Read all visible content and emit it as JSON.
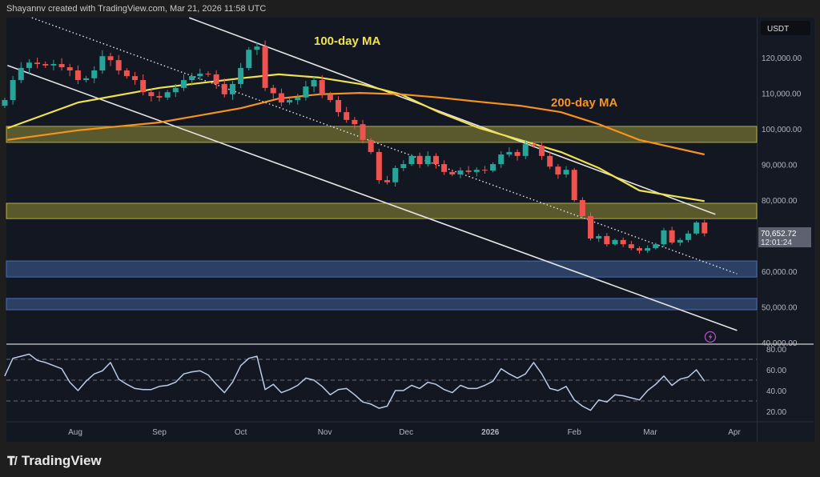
{
  "header": {
    "credit": "Shayannv created with TradingView.com, Mar 21, 2026 11:58 UTC"
  },
  "logo": {
    "text": "TradingView",
    "mark": "17"
  },
  "colors": {
    "up": "#26a69a",
    "down": "#ef5350",
    "ma100": "#f0e24a",
    "ma200": "#f7931a",
    "supply_zone": "#8a8535",
    "demand_zone": "#3d5a8c",
    "rsi": "#b8cbe8",
    "background": "#131722"
  },
  "annotations": {
    "ma100_label": "100-day MA",
    "ma200_label": "200-day MA"
  },
  "price_axis": {
    "currency": "USDT",
    "last_price": "70,652.72",
    "countdown": "12:01:24"
  },
  "chart_data": [
    {
      "type": "candlestick",
      "title": "",
      "ylim": [
        40000,
        131000
      ],
      "y_ticks": [
        "120,000.00",
        "110,000.00",
        "100,000.00",
        "90,000.00",
        "80,000.00",
        "70,000.00",
        "60,000.00",
        "50,000.00",
        "40,000.00"
      ],
      "y_tick_values": [
        120000,
        110000,
        100000,
        90000,
        80000,
        70000,
        60000,
        50000,
        40000
      ],
      "x_ticks": [
        {
          "label": "Aug",
          "date": "2025-08-01"
        },
        {
          "label": "Sep",
          "date": "2025-09-01"
        },
        {
          "label": "Oct",
          "date": "2025-10-01"
        },
        {
          "label": "Nov",
          "date": "2025-11-01"
        },
        {
          "label": "Dec",
          "date": "2025-12-01"
        },
        {
          "label": "2026",
          "date": "2026-01-01"
        },
        {
          "label": "Feb",
          "date": "2026-02-01"
        },
        {
          "label": "Mar",
          "date": "2026-03-01"
        },
        {
          "label": "Apr",
          "date": "2026-04-01"
        }
      ],
      "dates": [
        "2025-07-06",
        "2025-07-09",
        "2025-07-12",
        "2025-07-15",
        "2025-07-18",
        "2025-07-21",
        "2025-07-24",
        "2025-07-27",
        "2025-07-30",
        "2025-08-02",
        "2025-08-05",
        "2025-08-08",
        "2025-08-11",
        "2025-08-14",
        "2025-08-17",
        "2025-08-20",
        "2025-08-23",
        "2025-08-26",
        "2025-08-29",
        "2025-09-01",
        "2025-09-04",
        "2025-09-07",
        "2025-09-10",
        "2025-09-13",
        "2025-09-16",
        "2025-09-19",
        "2025-09-22",
        "2025-09-25",
        "2025-09-28",
        "2025-10-01",
        "2025-10-04",
        "2025-10-07",
        "2025-10-10",
        "2025-10-13",
        "2025-10-16",
        "2025-10-19",
        "2025-10-22",
        "2025-10-25",
        "2025-10-28",
        "2025-10-31",
        "2025-11-03",
        "2025-11-06",
        "2025-11-09",
        "2025-11-12",
        "2025-11-15",
        "2025-11-18",
        "2025-11-21",
        "2025-11-24",
        "2025-11-27",
        "2025-11-30",
        "2025-12-03",
        "2025-12-06",
        "2025-12-09",
        "2025-12-12",
        "2025-12-15",
        "2025-12-18",
        "2025-12-21",
        "2025-12-24",
        "2025-12-27",
        "2025-12-30",
        "2026-01-02",
        "2026-01-05",
        "2026-01-08",
        "2026-01-11",
        "2026-01-14",
        "2026-01-17",
        "2026-01-20",
        "2026-01-23",
        "2026-01-26",
        "2026-01-29",
        "2026-02-01",
        "2026-02-04",
        "2026-02-07",
        "2026-02-10",
        "2026-02-13",
        "2026-02-16",
        "2026-02-19",
        "2026-02-22",
        "2026-02-25",
        "2026-02-28",
        "2026-03-03",
        "2026-03-06",
        "2026-03-09",
        "2026-03-12",
        "2026-03-15",
        "2026-03-18",
        "2026-03-21"
      ],
      "close": [
        108100,
        113700,
        117100,
        118600,
        118200,
        117800,
        118200,
        117300,
        116400,
        113700,
        114200,
        116400,
        120400,
        119300,
        116400,
        114800,
        113700,
        110300,
        109200,
        108800,
        110300,
        111500,
        113700,
        114800,
        115500,
        115300,
        112600,
        109700,
        112600,
        117100,
        122200,
        123100,
        111500,
        110000,
        107400,
        108100,
        108800,
        111900,
        113700,
        109700,
        108100,
        104700,
        102500,
        101300,
        96900,
        93500,
        85600,
        85000,
        89000,
        90100,
        92400,
        90100,
        92400,
        90100,
        87900,
        87200,
        88300,
        87900,
        88500,
        88300,
        90100,
        92800,
        93500,
        92400,
        95700,
        95300,
        92400,
        89400,
        87200,
        88500,
        80000,
        75500,
        69200,
        69900,
        67600,
        68800,
        67600,
        66500,
        65800,
        66500,
        67600,
        71500,
        68100,
        68800,
        70600,
        73700,
        70652.72
      ],
      "moving_averages": [
        {
          "name": "100-day MA",
          "points": [
            [
              "2025-07-07",
              100200
            ],
            [
              "2025-08-02",
              107400
            ],
            [
              "2025-09-01",
              111500
            ],
            [
              "2025-10-01",
              114200
            ],
            [
              "2025-10-15",
              115300
            ],
            [
              "2025-10-30",
              114400
            ],
            [
              "2025-11-14",
              112600
            ],
            [
              "2025-11-29",
              109700
            ],
            [
              "2025-12-13",
              104700
            ],
            [
              "2025-12-28",
              100200
            ],
            [
              "2026-01-12",
              96900
            ],
            [
              "2026-01-27",
              93500
            ],
            [
              "2026-02-10",
              89000
            ],
            [
              "2026-02-25",
              82700
            ],
            [
              "2026-03-21",
              79700
            ]
          ]
        },
        {
          "name": "200-day MA",
          "points": [
            [
              "2025-07-07",
              96900
            ],
            [
              "2025-08-02",
              99600
            ],
            [
              "2025-09-01",
              101800
            ],
            [
              "2025-10-01",
              105800
            ],
            [
              "2025-10-15",
              108500
            ],
            [
              "2025-10-30",
              109700
            ],
            [
              "2025-11-14",
              110100
            ],
            [
              "2025-11-29",
              109700
            ],
            [
              "2025-12-13",
              108800
            ],
            [
              "2025-12-28",
              107600
            ],
            [
              "2026-01-12",
              106500
            ],
            [
              "2026-01-27",
              104700
            ],
            [
              "2026-02-10",
              101300
            ],
            [
              "2026-02-25",
              96900
            ],
            [
              "2026-03-21",
              92800
            ]
          ]
        }
      ],
      "zones": [
        {
          "kind": "supply",
          "from": 96200,
          "to": 100700
        },
        {
          "kind": "supply",
          "from": 74800,
          "to": 79100
        },
        {
          "kind": "demand",
          "from": 58400,
          "to": 62900
        },
        {
          "kind": "demand",
          "from": 49200,
          "to": 52400
        }
      ],
      "trendlines": [
        {
          "style": "solid",
          "from": [
            "2025-09-12",
            131200
          ],
          "to": [
            "2026-03-25",
            76000
          ]
        },
        {
          "style": "solid",
          "from": [
            "2025-07-07",
            117800
          ],
          "to": [
            "2026-04-02",
            43400
          ]
        },
        {
          "style": "dotted",
          "from": [
            "2025-07-16",
            131200
          ],
          "to": [
            "2026-04-02",
            59300
          ]
        }
      ]
    },
    {
      "type": "line",
      "title": "",
      "ylim": [
        10,
        85
      ],
      "y_ticks": [
        "80.00",
        "60.00",
        "40.00",
        "20.00"
      ],
      "y_tick_values": [
        80,
        60,
        40,
        20
      ],
      "levels": [
        70,
        50,
        30
      ],
      "values": [
        54,
        71,
        73,
        75,
        69,
        67,
        64,
        61,
        48,
        40,
        49,
        56,
        59,
        67,
        51,
        46,
        42,
        41,
        41,
        44,
        45,
        48,
        56,
        58,
        59,
        55,
        46,
        38,
        48,
        64,
        71,
        73,
        41,
        46,
        38,
        41,
        45,
        52,
        50,
        44,
        36,
        41,
        42,
        36,
        29,
        27,
        23,
        25,
        40,
        40,
        45,
        42,
        48,
        46,
        41,
        38,
        45,
        42,
        42,
        45,
        49,
        61,
        56,
        52,
        56,
        67,
        56,
        42,
        40,
        44,
        31,
        25,
        21,
        31,
        29,
        36,
        35,
        33,
        31,
        40,
        46,
        54,
        45,
        51,
        53,
        60,
        49
      ]
    }
  ]
}
